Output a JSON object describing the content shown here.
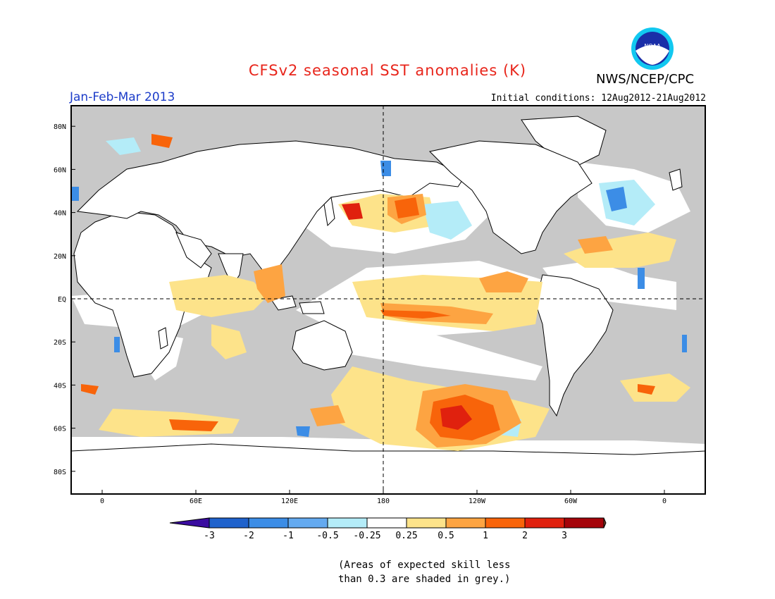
{
  "header": {
    "title": "CFSv2 seasonal SST anomalies (K)",
    "agency": "NWS/NCEP/CPC",
    "logo_text": "NOAA",
    "period": "Jan-Feb-Mar 2013",
    "initial_conditions": "Initial conditions: 12Aug2012-21Aug2012"
  },
  "map": {
    "lat_labels": [
      "80N",
      "60N",
      "40N",
      "20N",
      "EQ",
      "20S",
      "40S",
      "60S",
      "80S"
    ],
    "lon_labels": [
      "0",
      "60E",
      "120E",
      "180",
      "120W",
      "60W",
      "0"
    ],
    "colors": {
      "grey": "#c8c8c8",
      "land": "#ffffff",
      "neg3": "#3a0ca0",
      "neg2": "#1f62cc",
      "neg1": "#3c8de6",
      "neg05": "#64aaf0",
      "neg025": "#b4ecf8",
      "zero": "#ffffff",
      "pos025": "#fde38a",
      "pos05": "#fda442",
      "pos1": "#f8640a",
      "pos2": "#e0210e",
      "pos3": "#a5040a",
      "pos_ext": "#7c4428"
    }
  },
  "legend": {
    "ticks": [
      "-3",
      "-2",
      "-1",
      "-0.5",
      "-0.25",
      "0.25",
      "0.5",
      "1",
      "2",
      "3"
    ],
    "colors": [
      "#3a0ca0",
      "#1f62cc",
      "#3c8de6",
      "#64aaf0",
      "#b4ecf8",
      "#ffffff",
      "#fde38a",
      "#fda442",
      "#f8640a",
      "#e0210e",
      "#a5040a",
      "#7c4428"
    ]
  },
  "note": {
    "line1": "(Areas of expected skill less",
    "line2": "than 0.3 are shaded in grey.)"
  }
}
